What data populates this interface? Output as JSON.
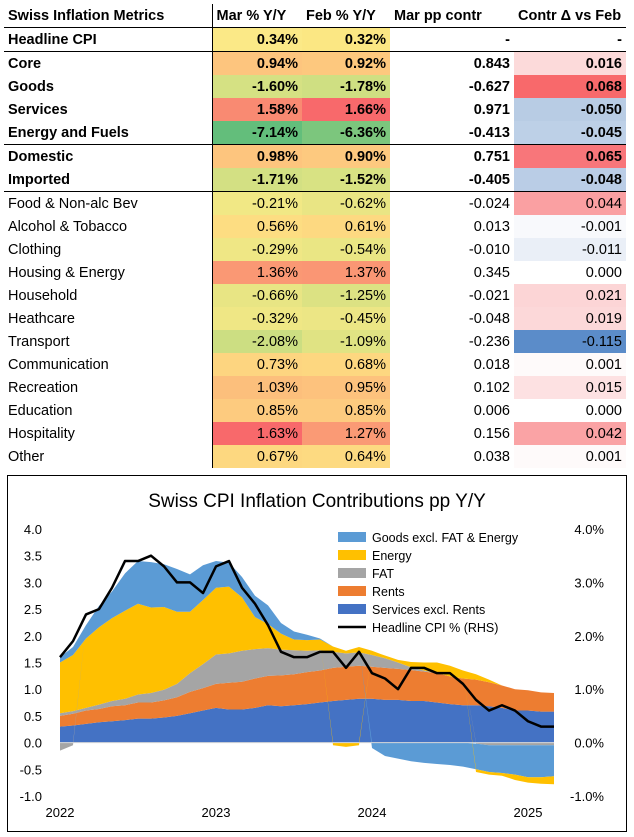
{
  "table": {
    "headers": [
      "Swiss Inflation Metrics",
      "Mar % Y/Y",
      "Feb % Y/Y",
      "Mar pp contr",
      "Contr Δ vs Feb"
    ],
    "rows": [
      {
        "label": "Headline CPI",
        "mar": "0.34%",
        "feb": "0.32%",
        "contr": "-",
        "delta": "-",
        "bold": true,
        "mar_bg": "#fbe987",
        "feb_bg": "#fbe783",
        "delta_bg": "#ffffff"
      },
      {
        "label": "Core",
        "mar": "0.94%",
        "feb": "0.92%",
        "contr": "0.843",
        "delta": "0.016",
        "bold": true,
        "mar_bg": "#fdc57e",
        "feb_bg": "#fdc87e",
        "delta_bg": "#fcdada"
      },
      {
        "label": "Goods",
        "mar": "-1.60%",
        "feb": "-1.78%",
        "contr": "-0.627",
        "delta": "0.068",
        "bold": true,
        "mar_bg": "#d5e183",
        "feb_bg": "#cfdf82",
        "delta_bg": "#f8696b"
      },
      {
        "label": "Services",
        "mar": "1.58%",
        "feb": "1.66%",
        "contr": "0.971",
        "delta": "-0.050",
        "bold": true,
        "mar_bg": "#f98a72",
        "feb_bg": "#f8696b",
        "delta_bg": "#b8cce4"
      },
      {
        "label": "Energy and Fuels",
        "mar": "-7.14%",
        "feb": "-6.36%",
        "contr": "-0.413",
        "delta": "-0.045",
        "bold": true,
        "mar_bg": "#63be7b",
        "feb_bg": "#7cc67d",
        "delta_bg": "#bdd0e7"
      },
      {
        "label": "Domestic",
        "mar": "0.98%",
        "feb": "0.90%",
        "contr": "0.751",
        "delta": "0.065",
        "bold": true,
        "mar_bg": "#fdc57e",
        "feb_bg": "#fdc97f",
        "delta_bg": "#f8767a"
      },
      {
        "label": "Imported",
        "mar": "-1.71%",
        "feb": "-1.52%",
        "contr": "-0.405",
        "delta": "-0.048",
        "bold": true,
        "mar_bg": "#d3e083",
        "feb_bg": "#d8e283",
        "delta_bg": "#bacde6"
      },
      {
        "label": "Food & Non-alc Bev",
        "mar": "-0.21%",
        "feb": "-0.62%",
        "contr": "-0.024",
        "delta": "0.044",
        "bold": false,
        "mar_bg": "#f1e885",
        "feb_bg": "#e9e584",
        "delta_bg": "#faa0a2"
      },
      {
        "label": "Alcohol & Tobacco",
        "mar": "0.56%",
        "feb": "0.61%",
        "contr": "0.013",
        "delta": "-0.001",
        "bold": false,
        "mar_bg": "#fddd82",
        "feb_bg": "#fdd981",
        "delta_bg": "#f8f9fc"
      },
      {
        "label": "Clothing",
        "mar": "-0.29%",
        "feb": "-0.54%",
        "contr": "-0.010",
        "delta": "-0.011",
        "bold": false,
        "mar_bg": "#efe785",
        "feb_bg": "#eae684",
        "delta_bg": "#eaeff7"
      },
      {
        "label": "Housing & Energy",
        "mar": "1.36%",
        "feb": "1.37%",
        "contr": "0.345",
        "delta": "0.000",
        "bold": false,
        "mar_bg": "#fa9874",
        "feb_bg": "#fa9674",
        "delta_bg": "#ffffff"
      },
      {
        "label": "Household",
        "mar": "-0.66%",
        "feb": "-1.25%",
        "contr": "-0.021",
        "delta": "0.021",
        "bold": false,
        "mar_bg": "#e8e584",
        "feb_bg": "#dce283",
        "delta_bg": "#fcd5d6"
      },
      {
        "label": "Heathcare",
        "mar": "-0.32%",
        "feb": "-0.45%",
        "contr": "-0.048",
        "delta": "0.019",
        "bold": false,
        "mar_bg": "#efe785",
        "feb_bg": "#ece685",
        "delta_bg": "#fcd8d9"
      },
      {
        "label": "Transport",
        "mar": "-2.08%",
        "feb": "-1.09%",
        "contr": "-0.236",
        "delta": "-0.115",
        "bold": false,
        "mar_bg": "#ccde82",
        "feb_bg": "#e0e383",
        "delta_bg": "#5b8cc9"
      },
      {
        "label": "Communication",
        "mar": "0.73%",
        "feb": "0.68%",
        "contr": "0.018",
        "delta": "0.001",
        "bold": false,
        "mar_bg": "#fdd580",
        "feb_bg": "#fdd780",
        "delta_bg": "#fefafa"
      },
      {
        "label": "Recreation",
        "mar": "1.03%",
        "feb": "0.95%",
        "contr": "0.102",
        "delta": "0.015",
        "bold": false,
        "mar_bg": "#fcbf7c",
        "feb_bg": "#fdc27d",
        "delta_bg": "#fde1e2"
      },
      {
        "label": "Education",
        "mar": "0.85%",
        "feb": "0.85%",
        "contr": "0.006",
        "delta": "0.000",
        "bold": false,
        "mar_bg": "#fdcb7f",
        "feb_bg": "#fdcb7f",
        "delta_bg": "#ffffff"
      },
      {
        "label": "Hospitality",
        "mar": "1.63%",
        "feb": "1.27%",
        "contr": "0.156",
        "delta": "0.042",
        "bold": false,
        "mar_bg": "#f8696b",
        "feb_bg": "#fa9a75",
        "delta_bg": "#faa3a5"
      },
      {
        "label": "Other",
        "mar": "0.67%",
        "feb": "0.64%",
        "contr": "0.038",
        "delta": "0.001",
        "bold": false,
        "mar_bg": "#fdd880",
        "feb_bg": "#fdda81",
        "delta_bg": "#fefafa"
      }
    ]
  },
  "chart_data": {
    "type": "area",
    "title": "Swiss CPI Inflation Contributions pp Y/Y",
    "x": [
      "2022-01",
      "2022-02",
      "2022-03",
      "2022-04",
      "2022-05",
      "2022-06",
      "2022-07",
      "2022-08",
      "2022-09",
      "2022-10",
      "2022-11",
      "2022-12",
      "2023-01",
      "2023-02",
      "2023-03",
      "2023-04",
      "2023-05",
      "2023-06",
      "2023-07",
      "2023-08",
      "2023-09",
      "2023-10",
      "2023-11",
      "2023-12",
      "2024-01",
      "2024-02",
      "2024-03",
      "2024-04",
      "2024-05",
      "2024-06",
      "2024-07",
      "2024-08",
      "2024-09",
      "2024-10",
      "2024-11",
      "2024-12",
      "2025-01",
      "2025-02",
      "2025-03"
    ],
    "x_tick_labels": [
      "2022",
      "2023",
      "2024",
      "2025"
    ],
    "ylim_left": [
      -1.0,
      4.0
    ],
    "y_ticks_left": [
      "4.0",
      "3.5",
      "3.0",
      "2.5",
      "2.0",
      "1.5",
      "1.0",
      "0.5",
      "0.0",
      "-0.5",
      "-1.0"
    ],
    "ylim_right": [
      -1.0,
      4.0
    ],
    "y_ticks_right": [
      "4.0%",
      "3.0%",
      "2.0%",
      "1.0%",
      "0.0%",
      "-1.0%"
    ],
    "series": [
      {
        "name": "Services excl. Rents",
        "color": "#4472c4",
        "values": [
          0.3,
          0.32,
          0.35,
          0.38,
          0.4,
          0.42,
          0.45,
          0.45,
          0.47,
          0.5,
          0.55,
          0.6,
          0.65,
          0.62,
          0.62,
          0.65,
          0.7,
          0.68,
          0.7,
          0.72,
          0.75,
          0.78,
          0.8,
          0.82,
          0.82,
          0.8,
          0.8,
          0.78,
          0.78,
          0.75,
          0.72,
          0.7,
          0.7,
          0.68,
          0.65,
          0.6,
          0.6,
          0.58,
          0.58
        ]
      },
      {
        "name": "Rents",
        "color": "#ed7d31",
        "values": [
          0.2,
          0.22,
          0.25,
          0.25,
          0.28,
          0.28,
          0.3,
          0.3,
          0.32,
          0.35,
          0.4,
          0.42,
          0.45,
          0.5,
          0.52,
          0.55,
          0.55,
          0.58,
          0.58,
          0.6,
          0.6,
          0.62,
          0.62,
          0.62,
          0.6,
          0.6,
          0.58,
          0.58,
          0.55,
          0.55,
          0.52,
          0.5,
          0.48,
          0.45,
          0.42,
          0.4,
          0.38,
          0.36,
          0.35
        ]
      },
      {
        "name": "FAT",
        "color": "#a5a5a5",
        "values": [
          0.05,
          0.05,
          0.05,
          0.08,
          0.1,
          0.12,
          0.15,
          0.18,
          0.2,
          0.25,
          0.35,
          0.45,
          0.55,
          0.55,
          0.58,
          0.55,
          0.52,
          0.48,
          0.45,
          0.4,
          0.38,
          0.3,
          0.25,
          0.25,
          0.22,
          0.18,
          0.12,
          0.05,
          0.02,
          0.0,
          0.0,
          0.0,
          0.0,
          0.0,
          0.0,
          0.0,
          0.0,
          0.0,
          0.0
        ]
      },
      {
        "name": "Energy",
        "color": "#ffc000",
        "values": [
          0.95,
          1.05,
          1.3,
          1.45,
          1.55,
          1.65,
          1.7,
          1.6,
          1.55,
          1.35,
          1.15,
          1.2,
          1.25,
          1.25,
          1.0,
          0.6,
          0.45,
          0.3,
          0.2,
          0.2,
          0.2,
          0.1,
          0.05,
          0.1,
          0.08,
          0.05,
          0.05,
          0.1,
          0.15,
          0.2,
          0.2,
          0.15,
          0.1,
          0.05,
          0.0,
          0.0,
          0.0,
          0.0,
          0.0
        ]
      },
      {
        "name": "Goods excl. FAT & Energy",
        "color": "#5b9bd5",
        "values": [
          0.1,
          0.15,
          0.25,
          0.4,
          0.5,
          0.7,
          0.8,
          0.85,
          0.8,
          0.8,
          0.7,
          0.65,
          0.5,
          0.45,
          0.38,
          0.4,
          0.35,
          0.2,
          0.15,
          0.1,
          0.02,
          0.0,
          0.0,
          0.0,
          0.0,
          0.0,
          0.0,
          0.0,
          0.0,
          0.0,
          0.0,
          0.0,
          0.0,
          0.0,
          0.0,
          0.0,
          0.0,
          0.0,
          0.0
        ]
      },
      {
        "name": "FAT (neg)",
        "color": "#a5a5a5",
        "legend": false,
        "values": [
          -0.15,
          -0.05,
          0,
          0,
          0,
          0,
          0,
          0,
          0,
          0,
          0,
          0,
          0,
          0,
          0,
          0,
          0,
          0,
          0,
          0,
          0,
          0,
          0,
          0,
          0,
          0,
          0,
          0,
          0,
          0,
          0,
          0,
          -0.02,
          -0.05,
          -0.05,
          -0.05,
          -0.05,
          -0.05,
          -0.05
        ]
      },
      {
        "name": "Goods (neg)",
        "color": "#5b9bd5",
        "legend": false,
        "values": [
          0,
          0,
          0,
          0,
          0,
          0,
          0,
          0,
          0,
          0,
          0,
          0,
          0,
          0,
          0,
          0,
          0,
          0,
          0,
          0,
          0,
          0,
          0,
          0,
          -0.1,
          -0.25,
          -0.3,
          -0.35,
          -0.38,
          -0.4,
          -0.42,
          -0.45,
          -0.48,
          -0.5,
          -0.52,
          -0.55,
          -0.6,
          -0.6,
          -0.58
        ]
      },
      {
        "name": "Energy (neg)",
        "color": "#ffc000",
        "legend": false,
        "values": [
          0,
          0,
          0,
          0,
          0,
          0,
          0,
          0,
          0,
          0,
          0,
          0,
          0,
          0,
          0,
          0,
          0,
          0,
          0,
          0,
          0,
          -0.05,
          -0.08,
          -0.05,
          0,
          0,
          0,
          0,
          0,
          0,
          0,
          0,
          -0.05,
          -0.05,
          -0.05,
          -0.1,
          -0.1,
          -0.12,
          -0.15
        ]
      }
    ],
    "line": {
      "name": "Headline CPI % (RHS)",
      "color": "#000000",
      "values": [
        1.6,
        1.9,
        2.4,
        2.5,
        2.9,
        3.4,
        3.4,
        3.5,
        3.3,
        3.0,
        3.0,
        2.8,
        3.3,
        3.4,
        2.9,
        2.6,
        2.2,
        1.7,
        1.6,
        1.6,
        1.7,
        1.7,
        1.4,
        1.7,
        1.3,
        1.2,
        1.0,
        1.4,
        1.4,
        1.3,
        1.3,
        1.1,
        0.8,
        0.6,
        0.7,
        0.6,
        0.4,
        0.3,
        0.3
      ]
    },
    "legend": [
      "Goods excl. FAT & Energy",
      "Energy",
      "FAT",
      "Rents",
      "Services excl. Rents",
      "Headline CPI % (RHS)"
    ],
    "legend_colors": [
      "#5b9bd5",
      "#ffc000",
      "#a5a5a5",
      "#ed7d31",
      "#4472c4",
      "#000000"
    ],
    "legend_placement": "top-right"
  }
}
